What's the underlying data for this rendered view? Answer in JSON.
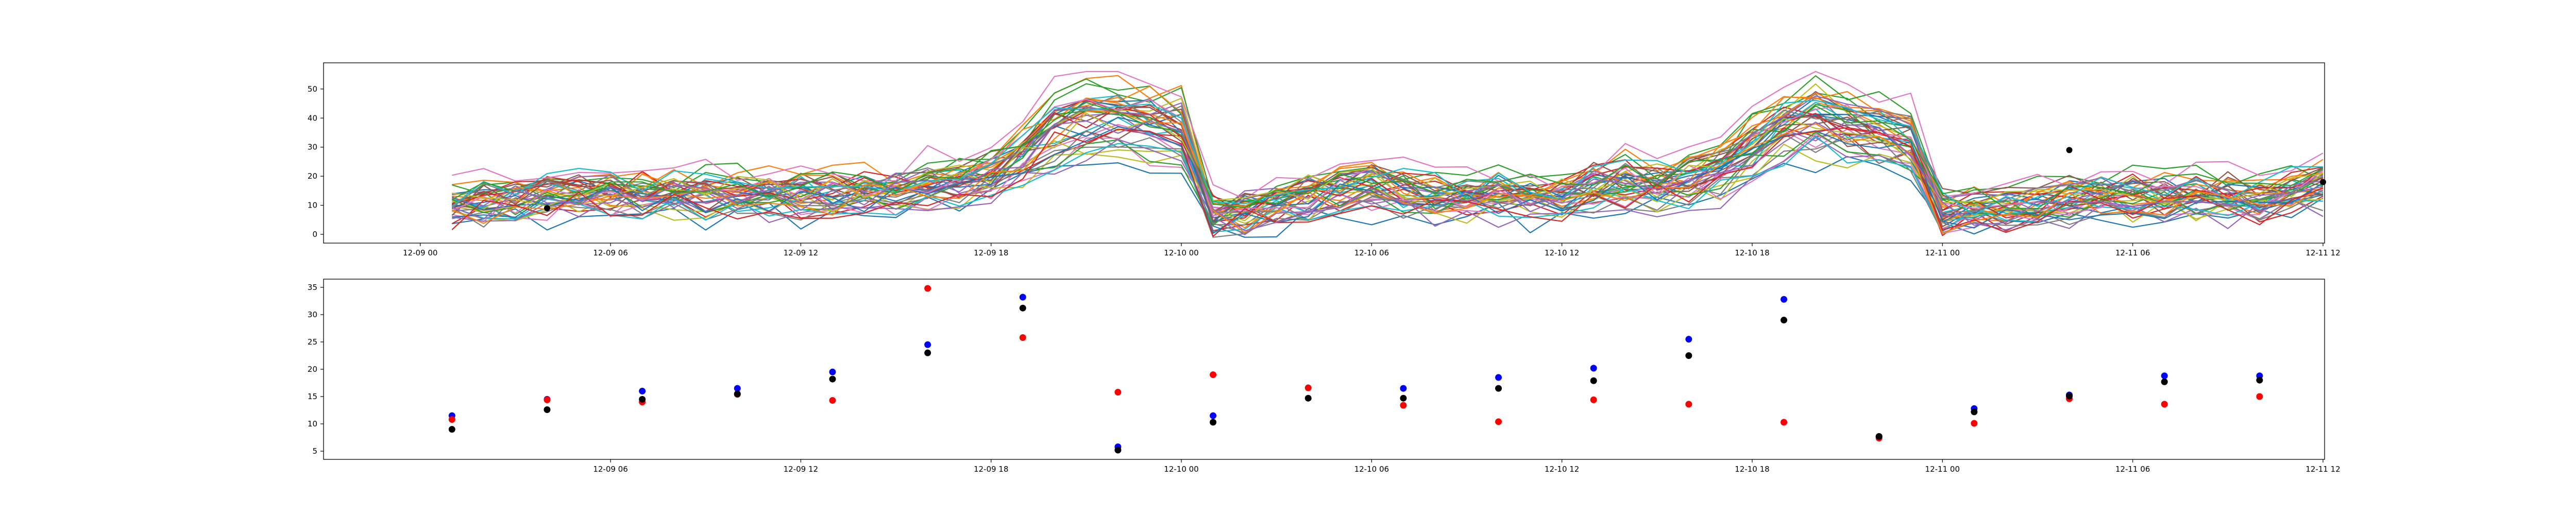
{
  "chart_data": [
    {
      "type": "line",
      "description_note": "",
      "x_tick_labels": [
        "12-09 00",
        "12-09 06",
        "12-09 12",
        "12-09 18",
        "12-10 00",
        "12-10 06",
        "12-10 12",
        "12-10 18",
        "12-11 00",
        "12-11 06",
        "12-11 12"
      ],
      "x_ticks_hours": [
        0,
        6,
        12,
        18,
        24,
        30,
        36,
        42,
        48,
        54,
        60
      ],
      "xlim_hours": [
        -3.05,
        60.05
      ],
      "y_ticks": [
        0,
        10,
        20,
        30,
        40,
        50
      ],
      "ylim": [
        -3,
        59
      ],
      "grid": false,
      "legend": "none",
      "profile_hours": [
        1,
        2,
        3,
        4,
        5,
        6,
        7,
        8,
        9,
        10,
        11,
        12,
        13,
        14,
        15,
        16,
        17,
        18,
        19,
        20,
        21,
        22,
        23,
        24,
        25,
        26,
        27,
        28,
        29,
        30,
        31,
        32,
        33,
        34,
        35,
        36,
        37,
        38,
        39,
        40,
        41,
        42,
        43,
        44,
        45,
        46,
        47,
        48,
        49,
        50,
        51,
        52,
        53,
        54,
        55,
        56,
        57,
        58,
        59,
        60
      ],
      "mean_profile": [
        10,
        11,
        12,
        13,
        14,
        14,
        14,
        14,
        14,
        14,
        14,
        14,
        14,
        15,
        15,
        17,
        18,
        21,
        28,
        36,
        40,
        40,
        38,
        36,
        7,
        8,
        10,
        13,
        16,
        17,
        15,
        13,
        13,
        14,
        13,
        12,
        16,
        18,
        17,
        19,
        22,
        30,
        38,
        40,
        37,
        35,
        32,
        8,
        8,
        9,
        10,
        12,
        13,
        13,
        12,
        13,
        13,
        12,
        15,
        17
      ],
      "num_series": 45,
      "series_colors": [
        "#1f77b4",
        "#ff7f0e",
        "#2ca02c",
        "#d62728",
        "#9467bd",
        "#8c564b",
        "#e377c2",
        "#7f7f7f",
        "#bcbd22",
        "#17becf"
      ],
      "highlight_points": [
        {
          "x_hours": 4,
          "y": 9,
          "color": "#000000"
        },
        {
          "x_hours": 52,
          "y": 29,
          "color": "#000000"
        },
        {
          "x_hours": 60,
          "y": 18,
          "color": "#000000"
        }
      ]
    },
    {
      "type": "scatter",
      "x_tick_labels": [
        "12-09 06",
        "12-09 12",
        "12-09 18",
        "12-10 00",
        "12-10 06",
        "12-10 12",
        "12-10 18",
        "12-11 00",
        "12-11 06",
        "12-11 12"
      ],
      "x_ticks_hours": [
        6,
        12,
        18,
        24,
        30,
        36,
        42,
        48,
        54,
        60
      ],
      "xlim_hours": [
        -3.05,
        60.05
      ],
      "y_ticks": [
        5,
        10,
        15,
        20,
        25,
        30,
        35
      ],
      "ylim": [
        3.5,
        36.5
      ],
      "grid": false,
      "legend": "none",
      "x_hours": [
        1,
        4,
        7,
        10,
        13,
        16,
        19,
        22,
        25,
        28,
        31,
        34,
        37,
        40,
        43,
        46,
        49,
        52,
        55,
        58,
        60
      ],
      "series": [
        {
          "color": "#0000ff",
          "values": [
            11.5,
            14.5,
            16,
            16.5,
            19.5,
            24.5,
            33.2,
            5.8,
            11.5,
            null,
            16.5,
            18.5,
            20.2,
            25.5,
            32.8,
            7.7,
            12.8,
            15.3,
            18.8,
            18.8,
            null
          ]
        },
        {
          "color": "#ff0000",
          "values": [
            10.8,
            14.4,
            14,
            15.4,
            14.3,
            34.8,
            25.8,
            15.8,
            19,
            16.6,
            13.4,
            10.4,
            14.4,
            13.6,
            10.3,
            7.4,
            10.1,
            14.6,
            13.6,
            15,
            null
          ]
        },
        {
          "color": "#000000",
          "values": [
            9,
            12.6,
            14.5,
            15.5,
            18.2,
            23,
            31.2,
            5.2,
            10.3,
            14.7,
            14.7,
            16.5,
            17.9,
            22.5,
            29,
            7.7,
            12.2,
            15.1,
            17.7,
            18,
            null
          ]
        }
      ]
    }
  ]
}
